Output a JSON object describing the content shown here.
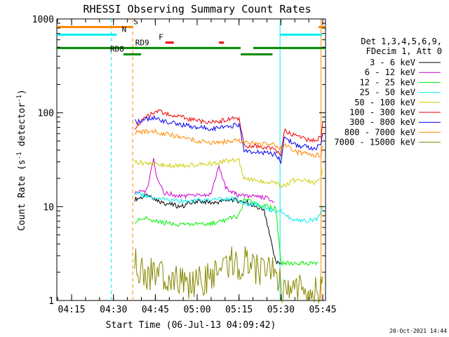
{
  "chart_data": {
    "type": "line",
    "title": "RHESSI Observing Summary Count Rates",
    "xlabel": "Start Time (06-Jul-13 04:09:42)",
    "ylabel_main": "Count Rate (s",
    "ylabel_sup1": "-1",
    "ylabel_mid": " detector",
    "ylabel_sup2": "-1",
    "ylabel_end": ")",
    "y_scale": "log",
    "ylim": [
      1,
      1000
    ],
    "xlim": [
      4.1617,
      5.7667
    ],
    "x_tick_labels": [
      "04:15",
      "04:30",
      "04:45",
      "05:00",
      "05:15",
      "05:30",
      "05:45"
    ],
    "x_tick_values": [
      4.25,
      4.5,
      4.75,
      5.0,
      5.25,
      5.5,
      5.75
    ],
    "y_tick_labels": [
      "1",
      "10",
      "100",
      "1000"
    ],
    "y_tick_values": [
      1,
      10,
      100,
      1000
    ],
    "legend_header": [
      "Det 1,3,4,5,6,9,",
      "FDecim 1, Att 0"
    ],
    "footer_date": "20-Oct-2021 14:44",
    "series": [
      {
        "name": "3 - 6 keV",
        "color": "#000000",
        "segments": [
          [
            [
              4.627,
              12
            ],
            [
              4.7,
              13
            ],
            [
              4.75,
              12
            ],
            [
              4.8,
              11
            ],
            [
              4.9,
              10
            ],
            [
              5.0,
              11.5
            ],
            [
              5.1,
              11
            ],
            [
              5.2,
              12
            ],
            [
              5.3,
              11
            ],
            [
              5.4,
              9
            ],
            [
              5.47,
              2.5
            ],
            [
              5.5,
              2.5
            ]
          ]
        ]
      },
      {
        "name": "6 - 12 keV",
        "color": "#cc00cc",
        "segments": [
          [
            [
              4.627,
              14
            ],
            [
              4.7,
              15
            ],
            [
              4.74,
              32
            ],
            [
              4.76,
              20
            ],
            [
              4.8,
              14
            ],
            [
              4.9,
              13
            ],
            [
              5.0,
              13
            ],
            [
              5.08,
              13.5
            ],
            [
              5.13,
              27
            ],
            [
              5.17,
              16
            ],
            [
              5.25,
              13
            ],
            [
              5.35,
              13
            ],
            [
              5.44,
              12
            ],
            [
              5.46,
              11
            ]
          ]
        ]
      },
      {
        "name": "12 - 25 keV",
        "color": "#00ee00",
        "segments": [
          [
            [
              4.627,
              7
            ],
            [
              4.7,
              7.5
            ],
            [
              4.75,
              7
            ],
            [
              4.85,
              6.5
            ],
            [
              4.95,
              6.5
            ],
            [
              5.05,
              6.5
            ],
            [
              5.15,
              7
            ],
            [
              5.25,
              8
            ],
            [
              5.28,
              12
            ],
            [
              5.35,
              10.5
            ],
            [
              5.42,
              10
            ],
            [
              5.47,
              9.5
            ],
            [
              5.5,
              2.5
            ],
            [
              5.72,
              2.5
            ]
          ]
        ]
      },
      {
        "name": "25 - 50 keV",
        "color": "#00eeee",
        "segments": [
          [
            [
              4.627,
              14
            ],
            [
              4.7,
              13
            ],
            [
              4.8,
              12
            ],
            [
              4.9,
              11.5
            ],
            [
              5.0,
              11.5
            ],
            [
              5.1,
              12
            ],
            [
              5.2,
              12
            ],
            [
              5.25,
              12
            ],
            [
              5.28,
              11
            ],
            [
              5.35,
              10.5
            ],
            [
              5.45,
              9
            ],
            [
              5.5,
              9
            ],
            [
              5.55,
              7.5
            ],
            [
              5.65,
              7
            ],
            [
              5.72,
              7.5
            ],
            [
              5.75,
              10
            ]
          ]
        ]
      },
      {
        "name": "50 - 100 keV",
        "color": "#cccc00",
        "segments": [
          [
            [
              4.627,
              30
            ],
            [
              4.7,
              29
            ],
            [
              4.8,
              28
            ],
            [
              4.9,
              27
            ],
            [
              5.0,
              28
            ],
            [
              5.1,
              29
            ],
            [
              5.2,
              31
            ],
            [
              5.25,
              31
            ],
            [
              5.28,
              20
            ],
            [
              5.35,
              19
            ],
            [
              5.42,
              18.5
            ],
            [
              5.47,
              18
            ],
            [
              5.5,
              16
            ],
            [
              5.6,
              20
            ],
            [
              5.7,
              18
            ],
            [
              5.74,
              20
            ],
            [
              5.75,
              25
            ]
          ]
        ]
      },
      {
        "name": "100 - 300 keV",
        "color": "#ee0000",
        "segments": [
          [
            [
              4.627,
              70
            ],
            [
              4.7,
              90
            ],
            [
              4.75,
              105
            ],
            [
              4.8,
              100
            ],
            [
              4.9,
              90
            ],
            [
              5.0,
              82
            ],
            [
              5.1,
              80
            ],
            [
              5.2,
              85
            ],
            [
              5.25,
              88
            ],
            [
              5.28,
              45
            ],
            [
              5.35,
              44
            ],
            [
              5.42,
              42
            ],
            [
              5.47,
              40
            ],
            [
              5.5,
              36
            ],
            [
              5.52,
              65
            ],
            [
              5.6,
              55
            ],
            [
              5.7,
              50
            ],
            [
              5.74,
              55
            ],
            [
              5.75,
              80
            ]
          ]
        ]
      },
      {
        "name": "300 - 800 keV",
        "color": "#0000ee",
        "segments": [
          [
            [
              4.627,
              80
            ],
            [
              4.7,
              85
            ],
            [
              4.75,
              88
            ],
            [
              4.8,
              82
            ],
            [
              4.9,
              75
            ],
            [
              5.0,
              70
            ],
            [
              5.1,
              68
            ],
            [
              5.2,
              72
            ],
            [
              5.25,
              75
            ],
            [
              5.28,
              40
            ],
            [
              5.35,
              38
            ],
            [
              5.42,
              37
            ],
            [
              5.47,
              36
            ],
            [
              5.5,
              30
            ],
            [
              5.52,
              55
            ],
            [
              5.6,
              45
            ],
            [
              5.7,
              42
            ],
            [
              5.74,
              45
            ],
            [
              5.75,
              60
            ]
          ]
        ]
      },
      {
        "name": "800 - 7000 keV",
        "color": "#ff8800",
        "segments": [
          [
            [
              4.627,
              62
            ],
            [
              4.7,
              63
            ],
            [
              4.75,
              64
            ],
            [
              4.8,
              60
            ],
            [
              4.9,
              55
            ],
            [
              5.0,
              50
            ],
            [
              5.1,
              48
            ],
            [
              5.2,
              50
            ],
            [
              5.25,
              50
            ],
            [
              5.28,
              48
            ],
            [
              5.35,
              47
            ],
            [
              5.42,
              46
            ],
            [
              5.47,
              45
            ],
            [
              5.5,
              42
            ],
            [
              5.52,
              45
            ],
            [
              5.6,
              38
            ],
            [
              5.7,
              35
            ],
            [
              5.74,
              36
            ],
            [
              5.75,
              45
            ]
          ]
        ]
      },
      {
        "name": "7000 - 15000 keV",
        "color": "#888800",
        "segments": [
          [
            [
              4.627,
              2.5
            ],
            [
              4.7,
              1.9
            ],
            [
              4.8,
              1.9
            ],
            [
              4.9,
              1.6
            ],
            [
              5.0,
              1.5
            ],
            [
              5.1,
              2.0
            ],
            [
              5.2,
              2.6
            ],
            [
              5.25,
              2.3
            ],
            [
              5.28,
              2.6
            ],
            [
              5.35,
              2.2
            ],
            [
              5.42,
              2.0
            ],
            [
              5.47,
              2.0
            ],
            [
              5.5,
              1.4
            ],
            [
              5.6,
              1.3
            ],
            [
              5.72,
              1.3
            ],
            [
              5.75,
              1.8
            ]
          ]
        ]
      }
    ],
    "vertical_lines": [
      {
        "x": 4.487,
        "color": "#00eeee",
        "dashed": true
      },
      {
        "x": 4.615,
        "color": "#ff8800",
        "dashed": true
      },
      {
        "x": 5.495,
        "color": "#00eeee",
        "dashed": false
      },
      {
        "x": 5.74,
        "color": "#ff8800",
        "dashed": false
      }
    ],
    "status_bars": [
      {
        "label": "S",
        "color": "#ff8800",
        "level": 820,
        "label_x": 4.62,
        "spans": [
          [
            4.1617,
            4.615
          ],
          [
            5.725,
            5.7667
          ]
        ]
      },
      {
        "label": "N",
        "color": "#00eeee",
        "level": 680,
        "label_x": 4.55,
        "spans": [
          [
            4.1617,
            4.52
          ],
          [
            5.495,
            5.745
          ]
        ]
      },
      {
        "label": "F",
        "color": "#ee0000",
        "level": 560,
        "label_x": 4.77,
        "spans": [
          [
            4.81,
            4.86
          ],
          [
            5.13,
            5.16
          ]
        ]
      },
      {
        "label": "RD9",
        "color": "#008800",
        "level": 490,
        "label_x": 4.63,
        "spans": [
          [
            4.1617,
            5.26
          ],
          [
            5.335,
            5.7667
          ]
        ]
      },
      {
        "label": "RD8",
        "color": "#008800",
        "level": 420,
        "label_x": 4.48,
        "spans": [
          [
            4.56,
            4.665
          ],
          [
            5.26,
            5.45
          ]
        ]
      }
    ]
  }
}
